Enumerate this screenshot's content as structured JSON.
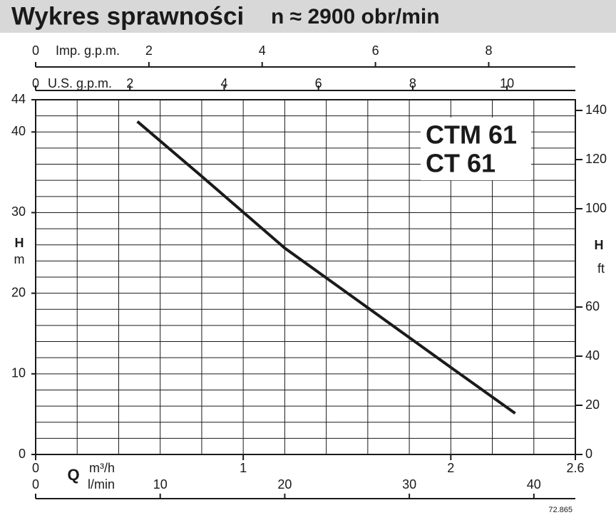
{
  "chart_data": {
    "type": "line",
    "title": "Wykres sprawności",
    "subtitle": "n ≈ 2900 obr/min",
    "model_labels": [
      "CTM 61",
      "CT 61"
    ],
    "xlabel": "Q",
    "x_unit": "m³/h",
    "ylabel": "H",
    "y_unit": "m",
    "y2label": "H",
    "y2_unit": "ft",
    "code": "72.865",
    "x": [
      0.49,
      0.8,
      1.2,
      1.6,
      2.0,
      2.31
    ],
    "values": [
      41.3,
      34.5,
      25.6,
      18.2,
      10.8,
      5.1
    ],
    "color": "#1a1a1a",
    "xlim": [
      0,
      2.6
    ],
    "xticks": [
      0,
      1,
      2,
      2.6
    ],
    "ylim": [
      0,
      44
    ],
    "yticks": [
      0,
      10,
      20,
      30,
      40,
      44
    ],
    "y2lim": [
      0,
      144.36
    ],
    "y2ticks": [
      0,
      20,
      40,
      60,
      100,
      120,
      140
    ],
    "xgrid": [
      0.2,
      0.4,
      0.6,
      0.8,
      1.0,
      1.2,
      1.4,
      1.6,
      1.8,
      2.0,
      2.2,
      2.4
    ],
    "ygrid": [
      2,
      4,
      6,
      8,
      10,
      12,
      14,
      16,
      18,
      20,
      22,
      24,
      26,
      28,
      30,
      32,
      34,
      36,
      38,
      40,
      42
    ],
    "grid": true,
    "x2": {
      "label": "l/min",
      "lim": [
        0,
        43.33
      ],
      "ticks": [
        0,
        10,
        20,
        30,
        40
      ]
    },
    "top_axes": [
      {
        "label": "Imp. g.p.m.",
        "lim": [
          0,
          9.53
        ],
        "ticks": [
          0,
          2,
          4,
          6,
          8
        ]
      },
      {
        "label": "U.S. g.p.m.",
        "lim": [
          0,
          11.45
        ],
        "ticks": [
          0,
          2,
          4,
          6,
          8,
          10
        ]
      }
    ]
  }
}
